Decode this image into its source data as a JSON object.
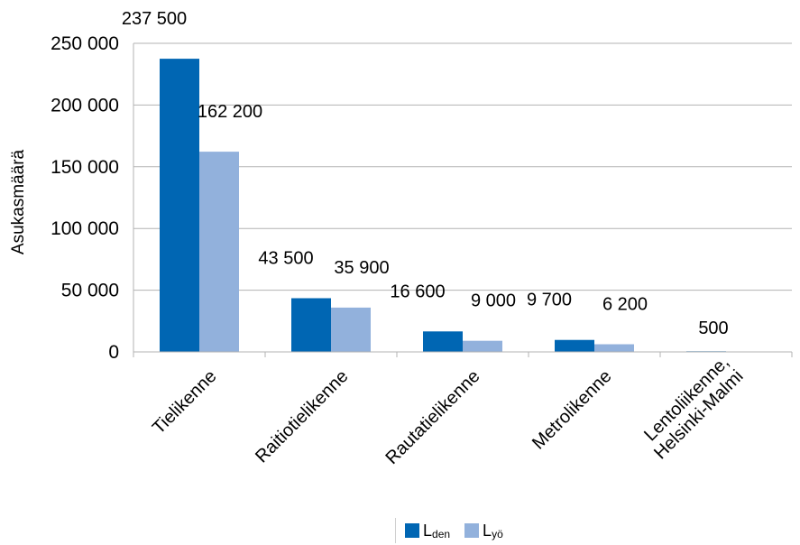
{
  "chart_data": {
    "type": "bar",
    "title": "",
    "xlabel": "",
    "ylabel": "Asukasmäärä",
    "ylim": [
      0,
      250000
    ],
    "yticks": [
      0,
      50000,
      100000,
      150000,
      200000,
      250000
    ],
    "ytick_labels": [
      "0",
      "50 000",
      "100 000",
      "150 000",
      "200 000",
      "250 000"
    ],
    "grid": true,
    "legend_position": "bottom",
    "categories": [
      [
        "Tielikenne"
      ],
      [
        "Raitiotielikenne"
      ],
      [
        "Rautatielikenne"
      ],
      [
        "Metrolikenne"
      ],
      [
        "Lentoliikenne,",
        "Helsinki-Malmi"
      ]
    ],
    "series": [
      {
        "name_main": "L",
        "name_sub": "den",
        "color": "#0066b3",
        "values": [
          237500,
          43500,
          16600,
          9700,
          500
        ],
        "labels": [
          "237 500",
          "43 500",
          "16 600",
          "9 700",
          "500"
        ]
      },
      {
        "name_main": "L",
        "name_sub": "yö",
        "color": "#92b1dc",
        "values": [
          162200,
          35900,
          9000,
          6200,
          null
        ],
        "labels": [
          "162 200",
          "35 900",
          "9 000",
          "6 200",
          ""
        ]
      }
    ]
  }
}
